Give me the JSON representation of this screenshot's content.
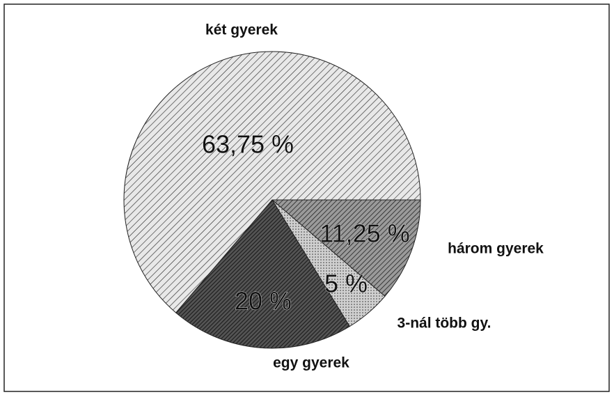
{
  "chart_data": {
    "type": "pie",
    "categories": [
      "három gyerek",
      "3-nál több gy.",
      "egy gyerek",
      "két gyerek"
    ],
    "values": [
      11.25,
      5,
      20,
      63.75
    ],
    "value_labels": [
      "11,25 %",
      "5 %",
      "20 %",
      "63,75 %"
    ],
    "colors": [
      "#9a9a9a",
      "#d0d0d0",
      "#555555",
      "#e8e8e8"
    ]
  }
}
